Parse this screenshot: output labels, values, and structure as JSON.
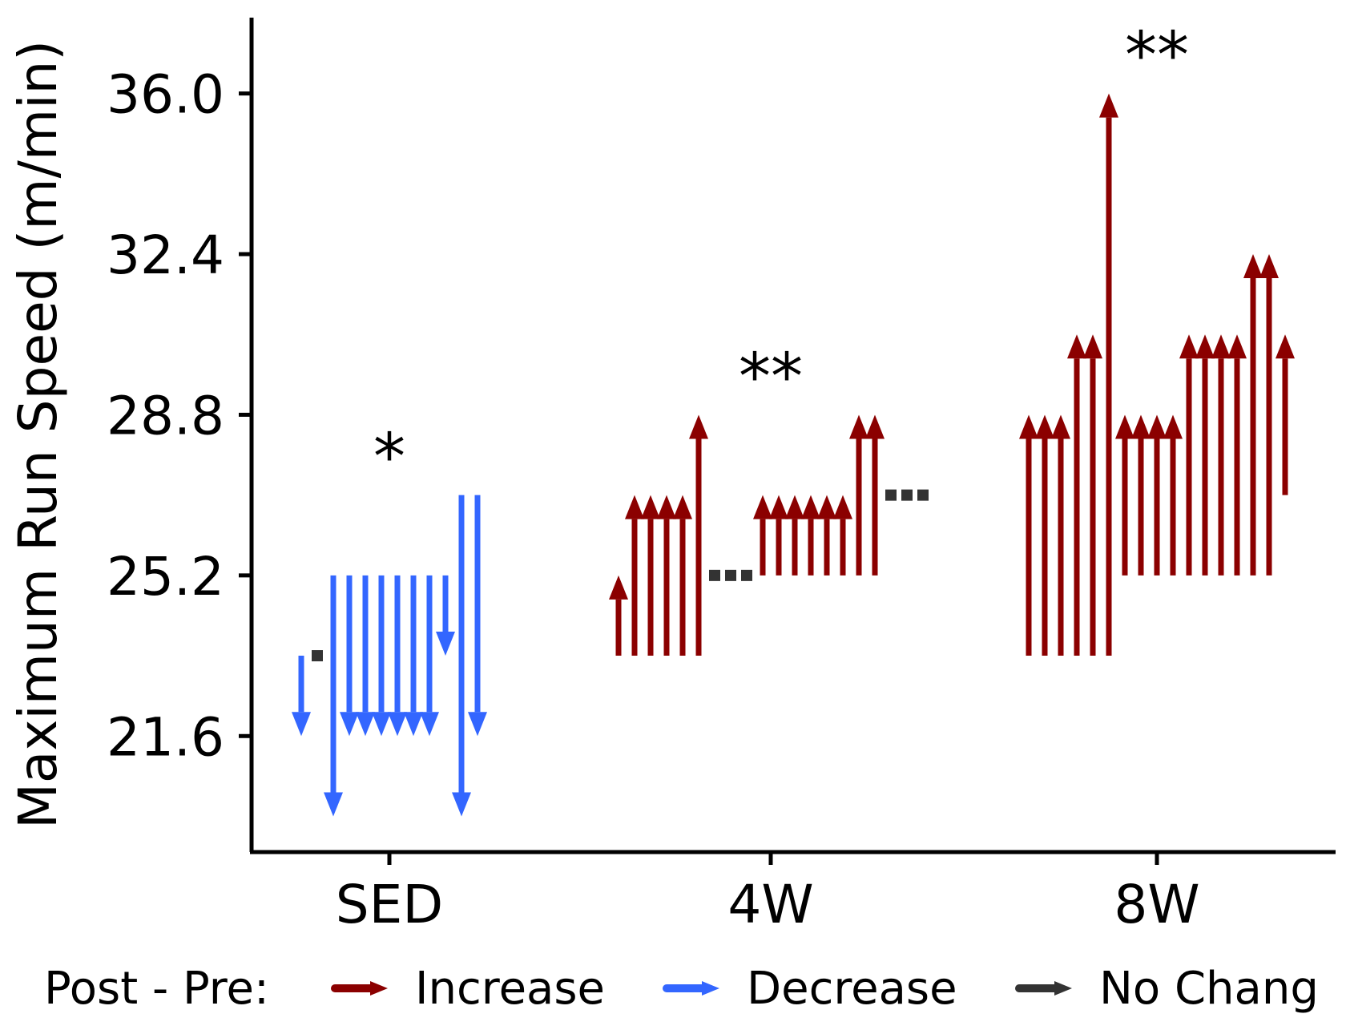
{
  "chart_data": {
    "type": "arrow-change",
    "ylabel": "Maximum Run Speed (m/min)",
    "xlabel": "",
    "yticks": [
      21.6,
      25.2,
      28.8,
      32.4,
      36.0
    ],
    "ytick_labels": [
      "21.6",
      "25.2",
      "28.8",
      "32.4",
      "36.0"
    ],
    "ylim": [
      19.0,
      37.7
    ],
    "categories": [
      "SED",
      "4W",
      "8W"
    ],
    "legend": {
      "title": "Post - Pre:",
      "position": "bottom",
      "entries": [
        {
          "label": "Increase",
          "color": "#8B0000"
        },
        {
          "label": "Decrease",
          "color": "#3366FF"
        },
        {
          "label": "No Chang",
          "color": "#333333"
        }
      ]
    },
    "groups": [
      {
        "name": "SED",
        "significance": "*",
        "arrows": [
          {
            "pre": 23.4,
            "post": 21.6
          },
          {
            "pre": 23.4,
            "post": 23.4
          },
          {
            "pre": 25.2,
            "post": 19.8
          },
          {
            "pre": 25.2,
            "post": 21.6
          },
          {
            "pre": 25.2,
            "post": 21.6
          },
          {
            "pre": 25.2,
            "post": 21.6
          },
          {
            "pre": 25.2,
            "post": 21.6
          },
          {
            "pre": 25.2,
            "post": 21.6
          },
          {
            "pre": 25.2,
            "post": 21.6
          },
          {
            "pre": 25.2,
            "post": 23.4
          },
          {
            "pre": 27.0,
            "post": 19.8
          },
          {
            "pre": 27.0,
            "post": 21.6
          }
        ]
      },
      {
        "name": "4W",
        "significance": "**",
        "arrows": [
          {
            "pre": 23.4,
            "post": 25.2
          },
          {
            "pre": 23.4,
            "post": 27.0
          },
          {
            "pre": 23.4,
            "post": 27.0
          },
          {
            "pre": 23.4,
            "post": 27.0
          },
          {
            "pre": 23.4,
            "post": 27.0
          },
          {
            "pre": 23.4,
            "post": 28.8
          },
          {
            "pre": 25.2,
            "post": 25.2
          },
          {
            "pre": 25.2,
            "post": 25.2
          },
          {
            "pre": 25.2,
            "post": 25.2
          },
          {
            "pre": 25.2,
            "post": 27.0
          },
          {
            "pre": 25.2,
            "post": 27.0
          },
          {
            "pre": 25.2,
            "post": 27.0
          },
          {
            "pre": 25.2,
            "post": 27.0
          },
          {
            "pre": 25.2,
            "post": 27.0
          },
          {
            "pre": 25.2,
            "post": 27.0
          },
          {
            "pre": 25.2,
            "post": 28.8
          },
          {
            "pre": 25.2,
            "post": 28.8
          },
          {
            "pre": 27.0,
            "post": 27.0
          },
          {
            "pre": 27.0,
            "post": 27.0
          },
          {
            "pre": 27.0,
            "post": 27.0
          }
        ]
      },
      {
        "name": "8W",
        "significance": "**",
        "arrows": [
          {
            "pre": 23.4,
            "post": 28.8
          },
          {
            "pre": 23.4,
            "post": 28.8
          },
          {
            "pre": 23.4,
            "post": 28.8
          },
          {
            "pre": 23.4,
            "post": 30.6
          },
          {
            "pre": 23.4,
            "post": 30.6
          },
          {
            "pre": 23.4,
            "post": 36.0
          },
          {
            "pre": 25.2,
            "post": 28.8
          },
          {
            "pre": 25.2,
            "post": 28.8
          },
          {
            "pre": 25.2,
            "post": 28.8
          },
          {
            "pre": 25.2,
            "post": 28.8
          },
          {
            "pre": 25.2,
            "post": 30.6
          },
          {
            "pre": 25.2,
            "post": 30.6
          },
          {
            "pre": 25.2,
            "post": 30.6
          },
          {
            "pre": 25.2,
            "post": 30.6
          },
          {
            "pre": 25.2,
            "post": 32.4
          },
          {
            "pre": 25.2,
            "post": 32.4
          },
          {
            "pre": 27.0,
            "post": 30.6
          }
        ]
      }
    ]
  }
}
